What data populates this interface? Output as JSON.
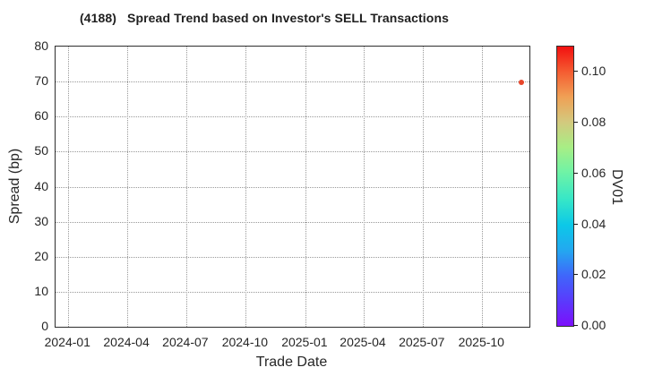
{
  "chart_data": {
    "type": "scatter",
    "title": "(4188)   Spread Trend based on Investor's SELL Transactions",
    "xlabel": "Trade Date",
    "ylabel": "Spread (bp)",
    "x_tick_labels": [
      "2024-01",
      "2024-04",
      "2024-07",
      "2024-10",
      "2025-01",
      "2025-04",
      "2025-07",
      "2025-10"
    ],
    "y_tick_labels": [
      "0",
      "10",
      "20",
      "30",
      "40",
      "50",
      "60",
      "70",
      "80"
    ],
    "ylim": [
      0,
      80
    ],
    "grid": true,
    "grid_style": "dotted",
    "points": [
      {
        "trade_date": "2025-12",
        "spread_bp": 69.7,
        "dv01": 0.096,
        "color": "#e8472b"
      }
    ],
    "colorbar": {
      "label": "DV01",
      "tick_labels": [
        "0.00",
        "0.02",
        "0.04",
        "0.06",
        "0.08",
        "0.10"
      ],
      "vmin": 0.0,
      "vmax": 0.11,
      "colormap": "rainbow",
      "gradient_stops": [
        [
          0.0,
          "#7c0ffb"
        ],
        [
          0.09,
          "#5a3bfc"
        ],
        [
          0.18,
          "#3f66fb"
        ],
        [
          0.27,
          "#23a8f0"
        ],
        [
          0.36,
          "#0cc8e8"
        ],
        [
          0.45,
          "#35e6c8"
        ],
        [
          0.55,
          "#6ff3a6"
        ],
        [
          0.64,
          "#a8ee85"
        ],
        [
          0.73,
          "#d3c97e"
        ],
        [
          0.82,
          "#f0a055"
        ],
        [
          0.91,
          "#f55c31"
        ],
        [
          1.0,
          "#f21010"
        ]
      ]
    }
  },
  "colors": {
    "background": "#ffffff",
    "grid": "#999999",
    "spine": "#2e2e2e",
    "text": "#262626",
    "point": "#e8472b"
  }
}
